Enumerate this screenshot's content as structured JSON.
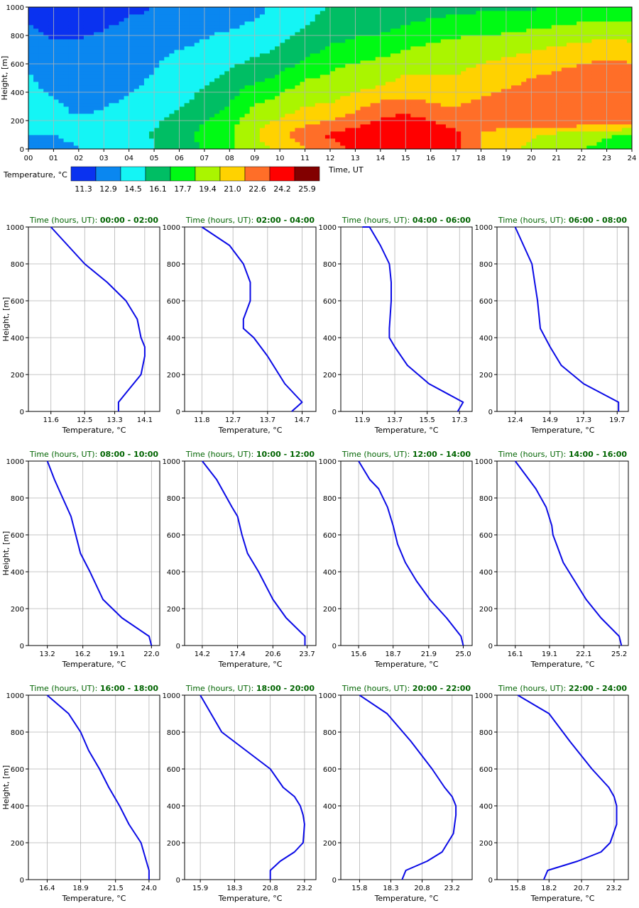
{
  "chart_data": [
    {
      "type": "heatmap",
      "ylabel": "Height, [m]",
      "xlabel": "Time, UT",
      "x_ticks": [
        "00",
        "01",
        "02",
        "03",
        "04",
        "05",
        "06",
        "07",
        "08",
        "09",
        "10",
        "11",
        "12",
        "13",
        "14",
        "15",
        "16",
        "17",
        "18",
        "19",
        "20",
        "21",
        "22",
        "23",
        "24"
      ],
      "y_ticks": [
        "0",
        "200",
        "400",
        "600",
        "800",
        "1000"
      ],
      "xlim": [
        0,
        24
      ],
      "ylim": [
        0,
        1000
      ],
      "grid": true,
      "colorbar": {
        "label": "Temperature, °C",
        "colors": [
          "#0a32f0",
          "#0a87f0",
          "#14f5f5",
          "#00be64",
          "#00fa14",
          "#aaf500",
          "#ffd200",
          "#ff6e28",
          "#ff0000",
          "#820000"
        ],
        "tick_labels": [
          "11.3",
          "12.9",
          "14.5",
          "16.1",
          "17.7",
          "19.4",
          "21.0",
          "22.6",
          "24.2",
          "25.9"
        ]
      },
      "heights_m": [
        0,
        100,
        200,
        300,
        400,
        500,
        600,
        700,
        800,
        900,
        1000
      ],
      "hours": [
        0,
        1,
        2,
        3,
        4,
        5,
        6,
        7,
        8,
        9,
        10,
        11,
        12,
        13,
        14,
        15,
        16,
        17,
        18,
        19,
        20,
        21,
        22,
        23,
        24
      ],
      "z": [
        [
          13.4,
          13.4,
          13.6,
          14.2,
          14.8,
          15.2,
          16.0,
          17.2,
          18.2,
          19.8,
          20.2,
          21.8,
          22.7,
          23.6,
          24.8,
          24.9,
          24.8,
          23.7,
          21.6,
          20.5,
          20.0,
          19.4,
          18.7,
          17.9,
          17.5
        ],
        [
          13.7,
          13.7,
          14.0,
          14.4,
          15.0,
          15.4,
          16.2,
          17.3,
          18.4,
          20.0,
          21.6,
          22.6,
          23.7,
          24.3,
          24.5,
          24.9,
          24.2,
          23.8,
          21.7,
          20.8,
          20.4,
          19.8,
          19.2,
          18.8,
          18.0
        ],
        [
          13.8,
          13.8,
          13.8,
          14.0,
          14.6,
          15.1,
          15.9,
          16.9,
          17.9,
          19.6,
          20.4,
          21.3,
          21.8,
          22.5,
          23.6,
          24.1,
          23.4,
          22.9,
          22.9,
          23.0,
          23.1,
          23.2,
          23.3,
          23.3,
          23.3
        ],
        [
          13.9,
          13.9,
          13.5,
          13.6,
          14.1,
          14.6,
          15.2,
          16.1,
          17.0,
          18.6,
          19.2,
          20.2,
          20.4,
          21.5,
          22.4,
          22.7,
          22.0,
          21.8,
          22.2,
          22.5,
          22.8,
          23.0,
          23.1,
          23.2,
          23.1
        ],
        [
          13.9,
          13.6,
          13.2,
          13.3,
          13.6,
          14.1,
          14.6,
          15.5,
          16.4,
          17.7,
          18.5,
          19.5,
          19.6,
          20.2,
          20.7,
          21.3,
          21.2,
          21.0,
          21.6,
          22.0,
          22.4,
          22.8,
          23.0,
          23.2,
          23.0
        ],
        [
          13.8,
          13.3,
          13.0,
          12.9,
          13.4,
          13.8,
          14.4,
          15.0,
          15.7,
          16.5,
          17.2,
          18.4,
          18.9,
          19.4,
          19.6,
          20.5,
          20.5,
          20.3,
          20.9,
          21.3,
          21.8,
          22.2,
          22.5,
          22.8,
          22.5
        ],
        [
          13.6,
          13.0,
          12.8,
          12.6,
          13.2,
          13.6,
          14.1,
          14.5,
          15.0,
          15.7,
          16.2,
          17.3,
          18.1,
          18.6,
          19.0,
          19.5,
          19.7,
          19.9,
          20.2,
          20.6,
          21.0,
          21.4,
          21.8,
          22.1,
          21.9
        ],
        [
          13.2,
          12.5,
          12.4,
          12.4,
          12.9,
          13.4,
          13.7,
          14.0,
          14.5,
          14.9,
          15.5,
          16.3,
          17.2,
          17.6,
          17.9,
          18.6,
          19.0,
          19.3,
          19.5,
          19.7,
          20.1,
          20.5,
          20.8,
          21.1,
          20.9
        ],
        [
          12.6,
          11.9,
          12.0,
          12.2,
          12.5,
          12.8,
          13.2,
          13.6,
          14.0,
          14.5,
          15.0,
          15.6,
          16.4,
          16.8,
          17.0,
          17.6,
          18.0,
          18.4,
          18.6,
          18.7,
          19.0,
          19.3,
          19.6,
          19.9,
          19.7
        ],
        [
          12.0,
          11.6,
          11.7,
          11.9,
          12.2,
          12.3,
          12.7,
          12.9,
          13.2,
          13.8,
          14.6,
          15.1,
          15.9,
          16.0,
          16.2,
          16.7,
          17.1,
          17.5,
          17.6,
          17.7,
          17.9,
          18.2,
          18.5,
          18.8,
          18.6
        ],
        [
          11.6,
          11.6,
          11.7,
          11.8,
          11.9,
          12.1,
          12.3,
          12.4,
          12.8,
          13.2,
          14.1,
          14.6,
          15.4,
          15.4,
          15.5,
          15.9,
          16.0,
          16.4,
          16.5,
          16.5,
          16.7,
          16.9,
          16.9,
          16.9,
          16.9
        ]
      ]
    },
    {
      "type": "line",
      "title_prefix": "Time (hours, UT): ",
      "title_range": "00:00 - 02:00",
      "xlabel": "Temperature, °C",
      "ylabel": "Height, [m]",
      "xlim": [
        11.0,
        14.5
      ],
      "x_ticks": [
        "11.6",
        "12.5",
        "13.3",
        "14.1"
      ],
      "y_ticks": [
        "0",
        "200",
        "400",
        "600",
        "800",
        "1000"
      ],
      "ylim": [
        0,
        1000
      ],
      "grid": true,
      "series": [
        {
          "x": [
            13.4,
            13.4,
            13.6,
            14.0,
            14.1,
            14.1,
            14.0,
            13.9,
            13.6,
            13.1,
            12.5,
            11.6
          ],
          "y": [
            0,
            50,
            100,
            200,
            300,
            350,
            400,
            500,
            600,
            700,
            800,
            1000
          ]
        }
      ]
    },
    {
      "type": "line",
      "title_prefix": "Time (hours, UT): ",
      "title_range": "02:00 - 04:00",
      "xlabel": "Temperature, °C",
      "ylabel": "",
      "xlim": [
        11.3,
        15.1
      ],
      "x_ticks": [
        "11.8",
        "12.7",
        "13.7",
        "14.7"
      ],
      "y_ticks": [
        "0",
        "200",
        "400",
        "600",
        "800",
        "1000"
      ],
      "ylim": [
        0,
        1000
      ],
      "grid": true,
      "series": [
        {
          "x": [
            14.4,
            14.7,
            14.2,
            13.7,
            13.3,
            13.0,
            13.0,
            13.2,
            13.2,
            13.0,
            12.6,
            11.8
          ],
          "y": [
            0,
            50,
            150,
            300,
            400,
            450,
            500,
            600,
            700,
            800,
            900,
            1000
          ]
        }
      ]
    },
    {
      "type": "line",
      "title_prefix": "Time (hours, UT): ",
      "title_range": "04:00 - 06:00",
      "xlabel": "Temperature, °C",
      "ylabel": "",
      "xlim": [
        10.7,
        18.0
      ],
      "x_ticks": [
        "11.9",
        "13.7",
        "15.5",
        "17.3"
      ],
      "y_ticks": [
        "0",
        "200",
        "400",
        "600",
        "800",
        "1000"
      ],
      "ylim": [
        0,
        1000
      ],
      "grid": true,
      "series": [
        {
          "x": [
            17.2,
            17.5,
            15.6,
            14.4,
            13.7,
            13.4,
            13.4,
            13.5,
            13.5,
            13.4,
            12.9,
            12.3,
            11.9
          ],
          "y": [
            0,
            50,
            150,
            250,
            350,
            400,
            450,
            600,
            700,
            800,
            900,
            1000,
            1000
          ]
        }
      ]
    },
    {
      "type": "line",
      "title_prefix": "Time (hours, UT): ",
      "title_range": "06:00 - 08:00",
      "xlabel": "Temperature, °C",
      "ylabel": "",
      "xlim": [
        11.1,
        20.5
      ],
      "x_ticks": [
        "12.4",
        "14.9",
        "17.3",
        "19.7"
      ],
      "y_ticks": [
        "0",
        "200",
        "400",
        "600",
        "800",
        "1000"
      ],
      "ylim": [
        0,
        1000
      ],
      "grid": true,
      "series": [
        {
          "x": [
            19.8,
            19.8,
            17.3,
            15.7,
            14.9,
            14.2,
            14.0,
            13.8,
            13.6,
            13.0,
            12.4
          ],
          "y": [
            0,
            50,
            150,
            250,
            350,
            450,
            600,
            700,
            800,
            900,
            1000
          ]
        }
      ]
    },
    {
      "type": "line",
      "title_prefix": "Time (hours, UT): ",
      "title_range": "08:00 - 10:00",
      "xlabel": "Temperature, °C",
      "ylabel": "Height, [m]",
      "xlim": [
        11.6,
        22.7
      ],
      "x_ticks": [
        "13.2",
        "16.2",
        "19.1",
        "22.0"
      ],
      "y_ticks": [
        "0",
        "200",
        "400",
        "600",
        "800",
        "1000"
      ],
      "ylim": [
        0,
        1000
      ],
      "grid": true,
      "series": [
        {
          "x": [
            22.0,
            21.8,
            19.5,
            17.9,
            16.8,
            16.0,
            15.6,
            15.2,
            14.5,
            13.8,
            13.2
          ],
          "y": [
            0,
            50,
            150,
            250,
            400,
            500,
            600,
            700,
            800,
            900,
            1000
          ]
        }
      ]
    },
    {
      "type": "line",
      "title_prefix": "Time (hours, UT): ",
      "title_range": "10:00 - 12:00",
      "xlabel": "Temperature, °C",
      "ylabel": "",
      "xlim": [
        12.6,
        24.5
      ],
      "x_ticks": [
        "14.2",
        "17.4",
        "20.6",
        "23.7"
      ],
      "y_ticks": [
        "0",
        "200",
        "400",
        "600",
        "800",
        "1000"
      ],
      "ylim": [
        0,
        1000
      ],
      "grid": true,
      "series": [
        {
          "x": [
            23.5,
            23.5,
            21.8,
            20.6,
            19.3,
            18.3,
            17.8,
            17.4,
            16.9,
            15.5,
            14.2
          ],
          "y": [
            0,
            50,
            150,
            250,
            400,
            500,
            600,
            700,
            750,
            900,
            1000
          ]
        }
      ]
    },
    {
      "type": "line",
      "title_prefix": "Time (hours, UT): ",
      "title_range": "12:00 - 14:00",
      "xlabel": "Temperature, °C",
      "ylabel": "",
      "xlim": [
        14.0,
        25.8
      ],
      "x_ticks": [
        "15.6",
        "18.7",
        "21.9",
        "25.0"
      ],
      "y_ticks": [
        "0",
        "200",
        "400",
        "600",
        "800",
        "1000"
      ],
      "ylim": [
        0,
        1000
      ],
      "grid": true,
      "series": [
        {
          "x": [
            25.0,
            24.8,
            23.5,
            22.0,
            20.8,
            19.8,
            19.1,
            18.7,
            18.2,
            17.4,
            16.6,
            15.6
          ],
          "y": [
            0,
            50,
            150,
            250,
            350,
            450,
            550,
            650,
            750,
            850,
            900,
            1000
          ]
        }
      ]
    },
    {
      "type": "line",
      "title_prefix": "Time (hours, UT): ",
      "title_range": "14:00 - 16:00",
      "xlabel": "Temperature, °C",
      "ylabel": "",
      "xlim": [
        14.5,
        26.0
      ],
      "x_ticks": [
        "16.1",
        "19.1",
        "22.1",
        "25.2"
      ],
      "y_ticks": [
        "0",
        "200",
        "400",
        "600",
        "800",
        "1000"
      ],
      "ylim": [
        0,
        1000
      ],
      "grid": true,
      "series": [
        {
          "x": [
            25.4,
            25.2,
            23.6,
            22.3,
            21.3,
            20.3,
            19.7,
            19.4,
            19.3,
            18.8,
            17.9,
            16.1
          ],
          "y": [
            0,
            50,
            150,
            250,
            350,
            450,
            550,
            600,
            650,
            750,
            850,
            1000
          ]
        }
      ]
    },
    {
      "type": "line",
      "title_prefix": "Time (hours, UT): ",
      "title_range": "16:00 - 18:00",
      "xlabel": "Temperature, °C",
      "ylabel": "Height, [m]",
      "xlim": [
        15.0,
        24.8
      ],
      "x_ticks": [
        "16.4",
        "18.9",
        "21.5",
        "24.0"
      ],
      "y_ticks": [
        "0",
        "200",
        "400",
        "600",
        "800",
        "1000"
      ],
      "ylim": [
        0,
        1000
      ],
      "grid": true,
      "series": [
        {
          "x": [
            24.0,
            24.0,
            23.8,
            23.4,
            22.5,
            21.8,
            21.0,
            20.3,
            19.5,
            18.9,
            18.0,
            16.4
          ],
          "y": [
            0,
            50,
            100,
            200,
            300,
            400,
            500,
            600,
            700,
            800,
            900,
            1000
          ]
        }
      ]
    },
    {
      "type": "line",
      "title_prefix": "Time (hours, UT): ",
      "title_range": "18:00 - 20:00",
      "xlabel": "Temperature, °C",
      "ylabel": "",
      "xlim": [
        14.8,
        24.0
      ],
      "x_ticks": [
        "15.9",
        "18.3",
        "20.8",
        "23.2"
      ],
      "y_ticks": [
        "0",
        "200",
        "400",
        "600",
        "800",
        "1000"
      ],
      "ylim": [
        0,
        1000
      ],
      "grid": true,
      "series": [
        {
          "x": [
            20.8,
            20.8,
            21.5,
            22.5,
            23.1,
            23.2,
            23.1,
            22.9,
            22.5,
            21.7,
            20.8,
            19.1,
            17.4,
            15.9
          ],
          "y": [
            0,
            50,
            100,
            150,
            200,
            300,
            350,
            400,
            450,
            500,
            600,
            700,
            800,
            1000
          ]
        }
      ]
    },
    {
      "type": "line",
      "title_prefix": "Time (hours, UT): ",
      "title_range": "20:00 - 22:00",
      "xlabel": "Temperature, °C",
      "ylabel": "",
      "xlim": [
        14.3,
        24.8
      ],
      "x_ticks": [
        "15.8",
        "18.3",
        "20.8",
        "23.2"
      ],
      "y_ticks": [
        "0",
        "200",
        "400",
        "600",
        "800",
        "1000"
      ],
      "ylim": [
        0,
        1000
      ],
      "grid": true,
      "series": [
        {
          "x": [
            19.2,
            19.5,
            21.2,
            22.4,
            23.3,
            23.5,
            23.5,
            23.2,
            22.6,
            21.6,
            19.9,
            18.0,
            15.8
          ],
          "y": [
            0,
            50,
            100,
            150,
            250,
            350,
            400,
            450,
            500,
            600,
            750,
            900,
            1000
          ]
        }
      ]
    },
    {
      "type": "line",
      "title_prefix": "Time (hours, UT): ",
      "title_range": "22:00 - 24:00",
      "xlabel": "Temperature, °C",
      "ylabel": "",
      "xlim": [
        14.2,
        24.3
      ],
      "x_ticks": [
        "15.8",
        "18.2",
        "20.7",
        "23.2"
      ],
      "y_ticks": [
        "0",
        "200",
        "400",
        "600",
        "800",
        "1000"
      ],
      "ylim": [
        0,
        1000
      ],
      "grid": true,
      "series": [
        {
          "x": [
            17.8,
            18.1,
            20.4,
            22.2,
            22.9,
            23.4,
            23.4,
            23.2,
            22.8,
            21.5,
            19.8,
            18.2,
            15.8
          ],
          "y": [
            0,
            50,
            100,
            150,
            200,
            300,
            400,
            450,
            500,
            600,
            750,
            900,
            1000
          ]
        }
      ]
    }
  ]
}
